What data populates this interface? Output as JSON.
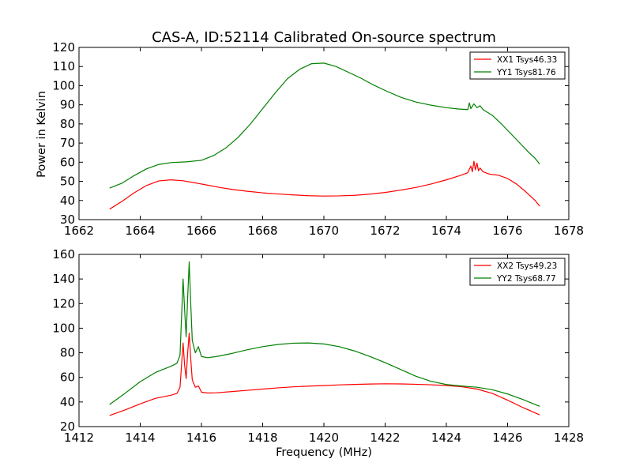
{
  "colors": {
    "xx": "#ff0000",
    "yy": "#008000",
    "axes": "#000000",
    "background": "#ffffff"
  },
  "figure": {
    "title": "CAS-A, ID:52114 Calibrated On-source spectrum",
    "xlabel": "Frequency (MHz)"
  },
  "chart_data": [
    {
      "type": "line",
      "title": "CAS-A, ID:52114 Calibrated On-source spectrum",
      "xlabel": "",
      "ylabel": "Power in Kelvin",
      "xlim": [
        1662,
        1678
      ],
      "ylim": [
        30,
        120
      ],
      "xticks": [
        1662,
        1664,
        1666,
        1668,
        1670,
        1672,
        1674,
        1676,
        1678
      ],
      "yticks": [
        30,
        40,
        50,
        60,
        70,
        80,
        90,
        100,
        110,
        120
      ],
      "grid": false,
      "legend_position": "top-right",
      "series": [
        {
          "name": "XX1 Tsys46.33",
          "color": "#ff0000",
          "x": [
            1663.0,
            1663.4,
            1663.8,
            1664.2,
            1664.6,
            1665.0,
            1665.4,
            1665.8,
            1666.2,
            1666.6,
            1667.0,
            1667.5,
            1668.0,
            1668.5,
            1669.0,
            1669.5,
            1670.0,
            1670.5,
            1671.0,
            1671.5,
            1672.0,
            1672.5,
            1673.0,
            1673.5,
            1674.0,
            1674.4,
            1674.7,
            1674.8,
            1674.85,
            1674.9,
            1674.95,
            1675.0,
            1675.05,
            1675.1,
            1675.2,
            1675.4,
            1675.7,
            1676.0,
            1676.3,
            1676.6,
            1676.9,
            1677.05
          ],
          "values": [
            35.5,
            39.5,
            44.0,
            47.8,
            50.2,
            50.8,
            50.3,
            49.2,
            48.0,
            46.8,
            45.8,
            44.8,
            44.0,
            43.4,
            42.9,
            42.5,
            42.3,
            42.4,
            42.7,
            43.3,
            44.2,
            45.4,
            46.8,
            48.6,
            50.8,
            52.8,
            54.5,
            58.0,
            55.0,
            60.5,
            56.0,
            59.5,
            55.5,
            57.0,
            55.0,
            53.8,
            53.2,
            51.5,
            48.5,
            44.5,
            40.0,
            37.0
          ]
        },
        {
          "name": "YY1 Tsys81.76",
          "color": "#008000",
          "x": [
            1663.0,
            1663.4,
            1663.8,
            1664.2,
            1664.6,
            1665.0,
            1665.5,
            1666.0,
            1666.4,
            1666.8,
            1667.2,
            1667.6,
            1668.0,
            1668.4,
            1668.8,
            1669.2,
            1669.6,
            1670.0,
            1670.4,
            1670.8,
            1671.2,
            1671.6,
            1672.0,
            1672.5,
            1673.0,
            1673.5,
            1674.0,
            1674.4,
            1674.7,
            1674.75,
            1674.8,
            1674.9,
            1675.0,
            1675.1,
            1675.2,
            1675.5,
            1675.8,
            1676.1,
            1676.4,
            1676.7,
            1676.9,
            1677.05
          ],
          "values": [
            46.5,
            49.0,
            53.0,
            56.5,
            58.8,
            59.8,
            60.2,
            61.0,
            63.5,
            67.5,
            73.0,
            80.0,
            88.0,
            96.0,
            103.5,
            108.5,
            111.5,
            111.8,
            110.0,
            107.0,
            104.0,
            100.5,
            97.5,
            94.0,
            91.5,
            89.8,
            88.5,
            87.8,
            87.5,
            91.0,
            88.0,
            90.5,
            88.5,
            89.5,
            87.5,
            84.5,
            80.0,
            75.0,
            70.0,
            65.0,
            62.0,
            59.0
          ]
        }
      ]
    },
    {
      "type": "line",
      "title": "",
      "xlabel": "Frequency (MHz)",
      "ylabel": "",
      "xlim": [
        1412,
        1428
      ],
      "ylim": [
        20,
        160
      ],
      "xticks": [
        1412,
        1414,
        1416,
        1418,
        1420,
        1422,
        1424,
        1426,
        1428
      ],
      "yticks": [
        20,
        40,
        60,
        80,
        100,
        120,
        140,
        160
      ],
      "grid": false,
      "legend_position": "top-right",
      "series": [
        {
          "name": "XX2 Tsys49.23",
          "color": "#ff0000",
          "x": [
            1413.0,
            1413.5,
            1414.0,
            1414.5,
            1415.0,
            1415.2,
            1415.3,
            1415.4,
            1415.45,
            1415.5,
            1415.55,
            1415.6,
            1415.65,
            1415.7,
            1415.8,
            1415.9,
            1416.0,
            1416.2,
            1416.5,
            1417.0,
            1417.5,
            1418.0,
            1418.5,
            1419.0,
            1419.5,
            1420.0,
            1420.5,
            1421.0,
            1421.5,
            1422.0,
            1422.5,
            1423.0,
            1423.5,
            1424.0,
            1424.5,
            1425.0,
            1425.5,
            1426.0,
            1426.5,
            1427.05
          ],
          "values": [
            29.0,
            33.5,
            38.5,
            43.0,
            45.5,
            47.0,
            52.0,
            88.0,
            70.0,
            59.0,
            80.0,
            96.0,
            75.0,
            58.0,
            52.0,
            53.0,
            48.0,
            47.3,
            47.5,
            48.5,
            49.5,
            50.5,
            51.5,
            52.3,
            52.9,
            53.4,
            53.9,
            54.3,
            54.6,
            54.8,
            54.7,
            54.4,
            54.0,
            53.4,
            52.4,
            50.5,
            47.0,
            41.5,
            35.5,
            29.5
          ]
        },
        {
          "name": "YY2 Tsys68.77",
          "color": "#008000",
          "x": [
            1413.0,
            1413.5,
            1414.0,
            1414.5,
            1415.0,
            1415.2,
            1415.3,
            1415.4,
            1415.45,
            1415.5,
            1415.55,
            1415.6,
            1415.65,
            1415.7,
            1415.8,
            1415.9,
            1416.0,
            1416.2,
            1416.5,
            1417.0,
            1417.5,
            1418.0,
            1418.5,
            1419.0,
            1419.5,
            1420.0,
            1420.5,
            1421.0,
            1421.5,
            1422.0,
            1422.5,
            1423.0,
            1423.5,
            1424.0,
            1424.5,
            1425.0,
            1425.5,
            1426.0,
            1426.5,
            1427.05
          ],
          "values": [
            38.0,
            47.0,
            56.5,
            64.0,
            69.0,
            71.5,
            78.0,
            140.0,
            115.0,
            93.0,
            125.0,
            154.0,
            120.0,
            90.0,
            80.0,
            85.0,
            77.0,
            76.0,
            77.0,
            79.5,
            82.5,
            85.0,
            86.8,
            87.8,
            88.0,
            87.2,
            85.0,
            81.5,
            77.0,
            72.0,
            66.5,
            61.0,
            56.8,
            54.2,
            53.0,
            52.0,
            50.0,
            46.5,
            42.0,
            36.5
          ]
        }
      ]
    }
  ]
}
